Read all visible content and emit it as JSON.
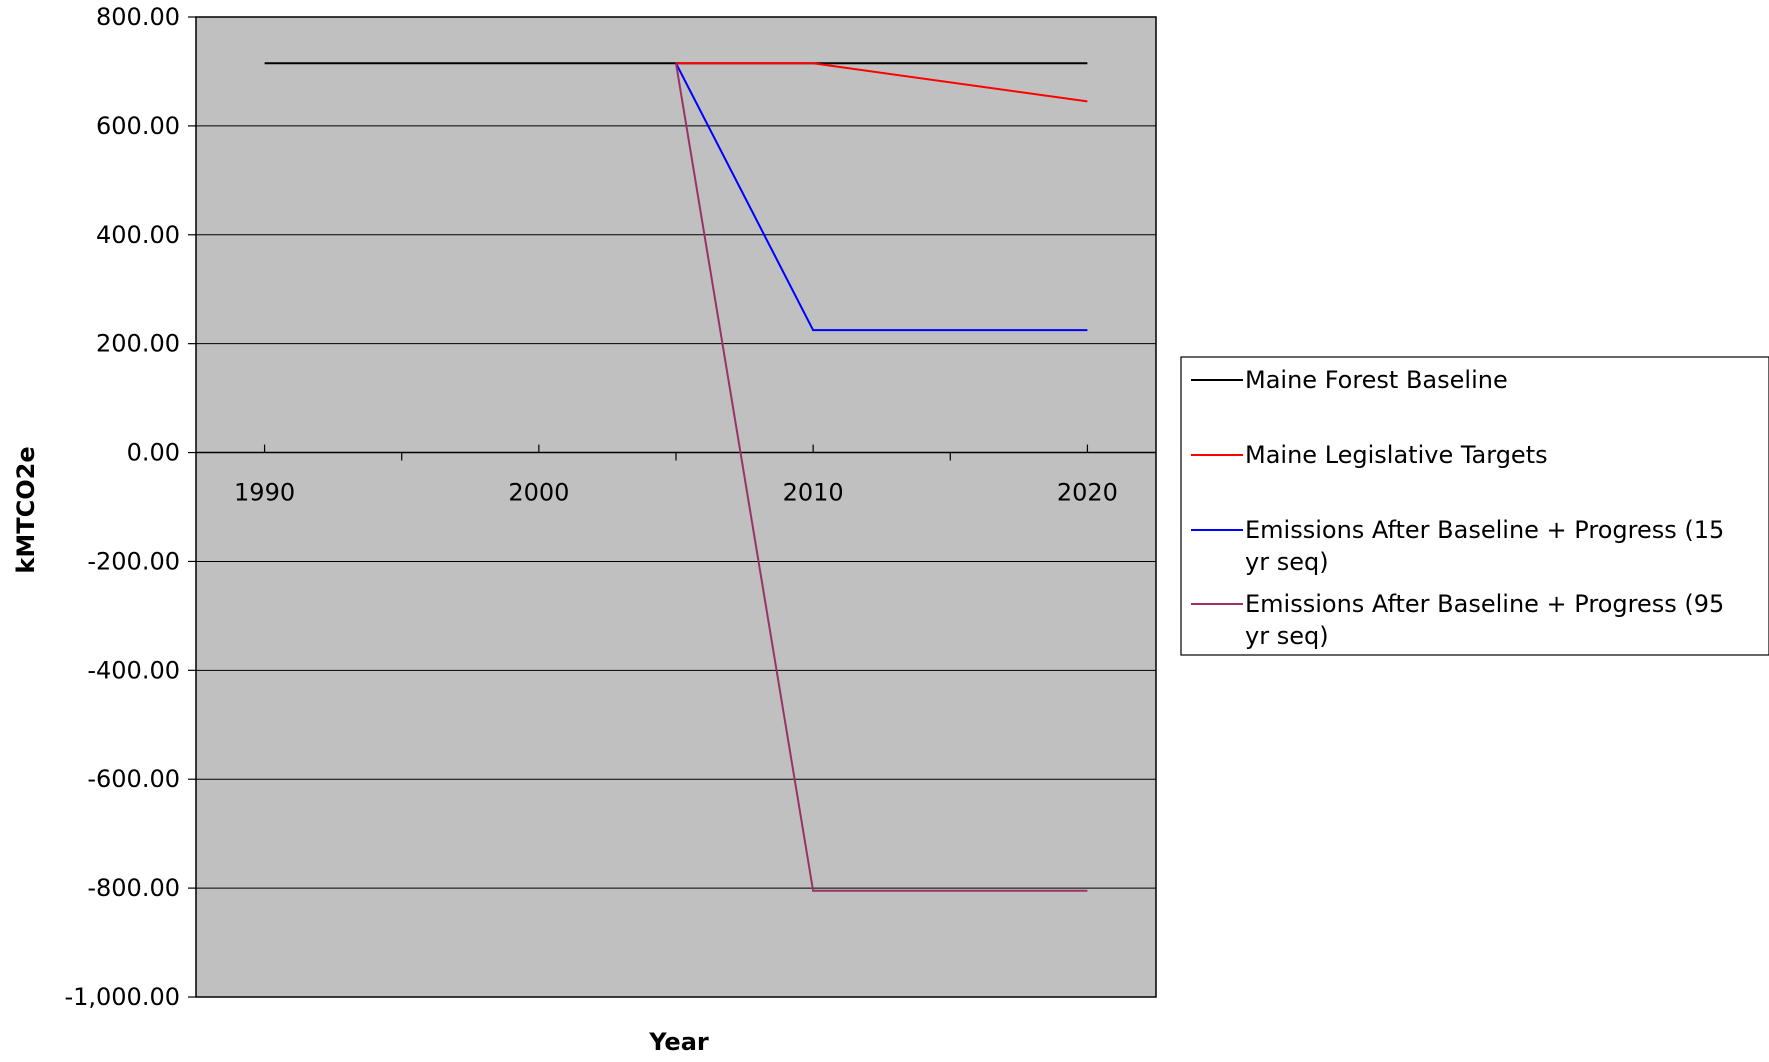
{
  "chart_data": {
    "type": "line",
    "title": "",
    "xlabel": "Year",
    "ylabel": "kMTCO2e",
    "x_tick_labels": [
      "1990",
      "2000",
      "2010",
      "2020"
    ],
    "y_tick_labels": [
      "800.00",
      "600.00",
      "400.00",
      "200.00",
      "0.00",
      "-200.00",
      "-400.00",
      "-600.00",
      "-800.00",
      "-1,000.00"
    ],
    "xlim": [
      1987.5,
      2022.5
    ],
    "ylim": [
      -1000,
      800
    ],
    "y_ticks": [
      800,
      600,
      400,
      200,
      0,
      -200,
      -400,
      -600,
      -800,
      -1000
    ],
    "grid": "horizontal",
    "legend_position": "right",
    "series": [
      {
        "name": "Maine Forest Baseline",
        "color": "#000000",
        "x": [
          1990,
          2005,
          2010,
          2020
        ],
        "y": [
          715,
          715,
          715,
          715
        ]
      },
      {
        "name": "Maine Legislative Targets",
        "color": "#ff0000",
        "x": [
          2005,
          2010,
          2020
        ],
        "y": [
          715,
          715,
          645
        ]
      },
      {
        "name": "Emissions After Baseline + Progress (15 yr seq)",
        "color": "#0000ff",
        "x": [
          2005,
          2010,
          2020
        ],
        "y": [
          715,
          225,
          225
        ]
      },
      {
        "name": "Emissions After Baseline + Progress (95 yr seq)",
        "color": "#993366",
        "x": [
          2005,
          2010,
          2020
        ],
        "y": [
          715,
          -805,
          -805
        ]
      }
    ]
  }
}
